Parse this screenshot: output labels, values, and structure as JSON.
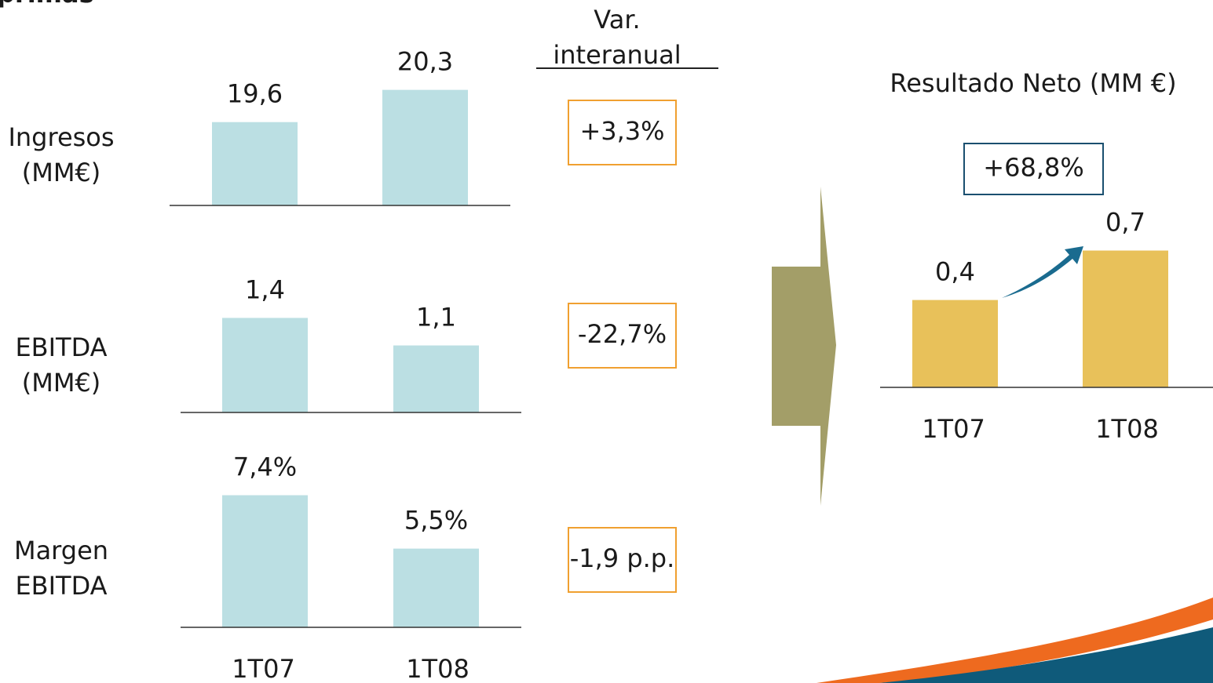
{
  "slide": {
    "title": "primas",
    "variation_header": [
      "Var.",
      "interanual"
    ]
  },
  "chart_data": [
    {
      "type": "bar",
      "title": [
        "Ingresos",
        "(MM€)"
      ],
      "categories": [
        null,
        null
      ],
      "values": [
        19.6,
        20.3
      ],
      "value_labels": [
        "19,6",
        "20,3"
      ],
      "color": "#bbdfe3",
      "ylim": [
        17.79,
        20.6
      ],
      "annotation": "+3,3%"
    },
    {
      "type": "bar",
      "title": [
        "EBITDA",
        "(MM€)"
      ],
      "categories": [
        null,
        null
      ],
      "values": [
        1.4,
        1.1
      ],
      "value_labels": [
        "1,4",
        "1,1"
      ],
      "color": "#bbdfe3",
      "ylim": [
        0.37,
        1.6
      ],
      "annotation": "-22,7%"
    },
    {
      "type": "bar",
      "title": [
        "Margen",
        "EBITDA"
      ],
      "categories": [
        "1T07",
        "1T08"
      ],
      "values": [
        7.4,
        5.5
      ],
      "value_labels": [
        "7,4%",
        "5,5%"
      ],
      "color": "#bbdfe3",
      "ylim": [
        2.7,
        8.0
      ],
      "annotation": "-1,9 p.p."
    },
    {
      "type": "bar",
      "title": [
        "Resultado Neto (MM €)"
      ],
      "categories": [
        "1T07",
        "1T08"
      ],
      "values": [
        0.4,
        0.7
      ],
      "value_labels": [
        "0,4",
        "0,7"
      ],
      "color": "#e8c15a",
      "ylim": [
        -0.13,
        0.75
      ],
      "annotation": "+68,8%"
    }
  ]
}
